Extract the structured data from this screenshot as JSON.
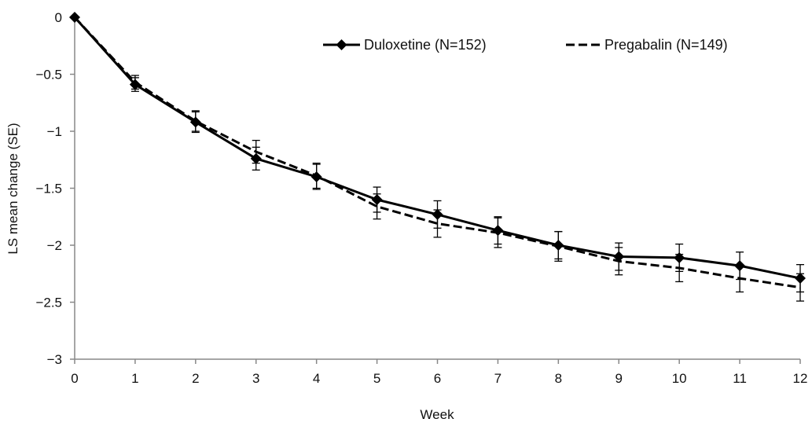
{
  "chart_data": {
    "type": "line",
    "title": "",
    "xlabel": "Week",
    "ylabel": "LS mean change (SE)",
    "xlim": [
      0,
      12
    ],
    "ylim": [
      -3,
      0
    ],
    "x_ticks": [
      "0",
      "1",
      "2",
      "3",
      "4",
      "5",
      "6",
      "7",
      "8",
      "9",
      "10",
      "11",
      "12"
    ],
    "y_ticks": [
      "0",
      "−0.5",
      "−1",
      "−1.5",
      "−2",
      "−2.5",
      "−3"
    ],
    "y_tick_values": [
      0,
      -0.5,
      -1,
      -1.5,
      -2,
      -2.5,
      -3
    ],
    "grid": false,
    "legend_position": "top-right",
    "x": [
      0,
      1,
      2,
      3,
      4,
      5,
      6,
      7,
      8,
      9,
      10,
      11,
      12
    ],
    "series": [
      {
        "name": "Duloxetine (N=152)",
        "style": "solid",
        "marker": "diamond",
        "color": "#000000",
        "values": [
          0,
          -0.59,
          -0.92,
          -1.24,
          -1.4,
          -1.6,
          -1.73,
          -1.87,
          -2.0,
          -2.1,
          -2.11,
          -2.18,
          -2.29
        ],
        "se": [
          0,
          0.06,
          0.09,
          0.1,
          0.11,
          0.11,
          0.12,
          0.12,
          0.12,
          0.12,
          0.12,
          0.12,
          0.12
        ]
      },
      {
        "name": "Pregabalin (N=149)",
        "style": "dashed",
        "marker": "none",
        "color": "#000000",
        "values": [
          0,
          -0.57,
          -0.91,
          -1.18,
          -1.39,
          -1.66,
          -1.81,
          -1.89,
          -2.01,
          -2.14,
          -2.2,
          -2.29,
          -2.37
        ],
        "se": [
          0,
          0.06,
          0.09,
          0.1,
          0.11,
          0.11,
          0.12,
          0.13,
          0.13,
          0.12,
          0.12,
          0.12,
          0.12
        ]
      }
    ]
  }
}
